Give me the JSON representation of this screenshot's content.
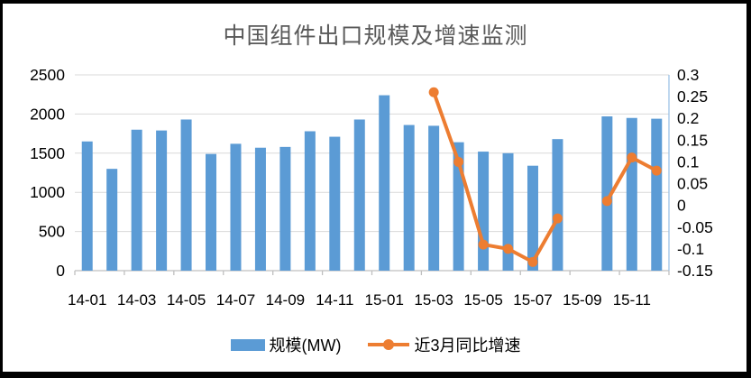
{
  "title": "中国组件出口规模及增速监测",
  "colors": {
    "bar": "#5B9BD5",
    "line": "#ED7D31",
    "gridline": "#D9D9D9",
    "axis_line": "#BFBFBF",
    "right_border": "#9DC3E6",
    "title_text": "#595959",
    "label_text": "#000000",
    "frame": "#000000",
    "background": "#FFFFFF"
  },
  "chart_data": {
    "type": "bar",
    "title": "中国组件出口规模及增速监测",
    "categories": [
      "14-01",
      "14-02",
      "14-03",
      "14-04",
      "14-05",
      "14-06",
      "14-07",
      "14-08",
      "14-09",
      "14-10",
      "14-11",
      "14-12",
      "15-01",
      "15-02",
      "15-03",
      "15-04",
      "15-05",
      "15-06",
      "15-07",
      "15-08",
      "15-09",
      "15-10",
      "15-11",
      "15-12"
    ],
    "series": [
      {
        "name": "规模(MW)",
        "kind": "bar",
        "axis": "left",
        "values": [
          1650,
          1300,
          1800,
          1790,
          1930,
          1490,
          1620,
          1570,
          1580,
          1780,
          1710,
          1930,
          2240,
          1860,
          1850,
          1640,
          1520,
          1500,
          1340,
          1680,
          null,
          1970,
          1950,
          1940
        ]
      },
      {
        "name": "近3月同比增速",
        "kind": "line",
        "axis": "right",
        "values": [
          null,
          null,
          null,
          null,
          null,
          null,
          null,
          null,
          null,
          null,
          null,
          null,
          null,
          null,
          0.26,
          0.1,
          -0.09,
          -0.1,
          -0.13,
          -0.03,
          null,
          0.01,
          0.11,
          0.08
        ]
      }
    ],
    "x_axis": {
      "tick_labels": [
        "14-01",
        "14-03",
        "14-05",
        "14-07",
        "14-09",
        "14-11",
        "15-01",
        "15-03",
        "15-05",
        "15-07",
        "15-09",
        "15-11"
      ]
    },
    "y_left_axis": {
      "min": 0,
      "max": 2500,
      "step": 500,
      "tick_labels": [
        "2500",
        "2000",
        "1500",
        "1000",
        "500",
        "0"
      ]
    },
    "y_right_axis": {
      "min": -0.15,
      "max": 0.3,
      "step": 0.05,
      "tick_labels": [
        "0.3",
        "0.25",
        "0.2",
        "0.15",
        "0.1",
        "0.05",
        "0",
        "-0.05",
        "-0.1",
        "-0.15"
      ]
    },
    "grid": true,
    "legend_position": "bottom"
  }
}
